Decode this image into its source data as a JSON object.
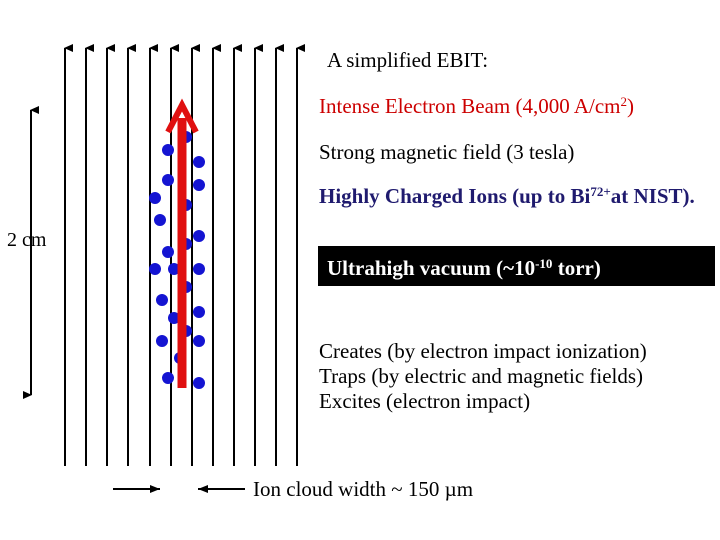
{
  "title": "A simplified EBIT:",
  "beam_label": {
    "text": "Intense Electron Beam (4,000 A/cm",
    "sup": "2",
    "suffix": ")",
    "color": "#cc0000"
  },
  "field_label": "Strong magnetic field (3 tesla)",
  "ions_label": {
    "text": "Highly Charged Ions (up to Bi",
    "sup": "72+",
    "suffix": "at NIST).",
    "color": "#1f1a6e"
  },
  "vacuum_label": {
    "text": "Ultrahigh vacuum (~10",
    "sup": "-10",
    "suffix": " torr)"
  },
  "scale_label": "2 cm",
  "functions": [
    "Creates (by electron impact ionization)",
    "Traps (by electric and magnetic fields)",
    "Excites (electron impact)"
  ],
  "width_label": "Ion cloud width ~ 150 µm",
  "colors": {
    "beam": "#e01010",
    "ions": "#1414d2",
    "field_lines": "#000000"
  }
}
